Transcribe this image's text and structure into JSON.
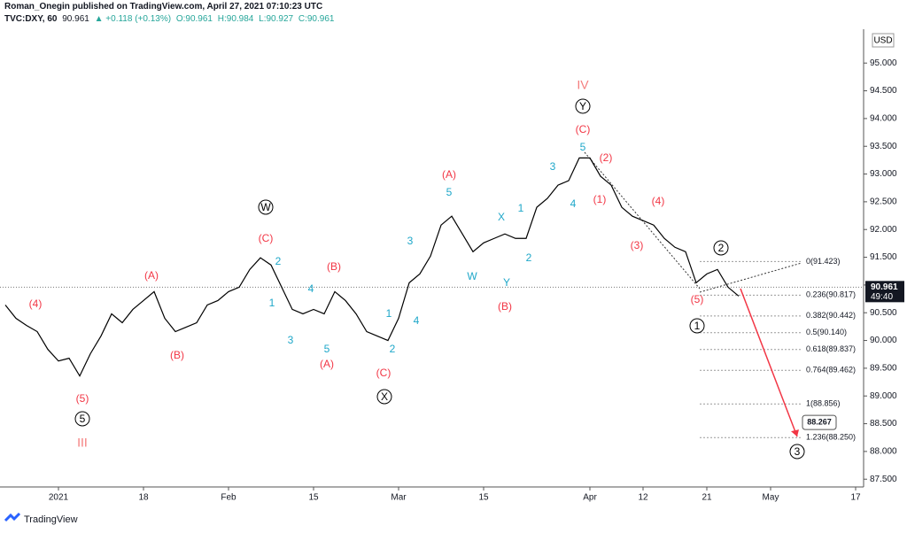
{
  "header": {
    "publisher": "Roman_Onegin published on TradingView.com, April 27, 2021 07:10:23 UTC",
    "symbol": "TVC:DXY, 60",
    "price": "90.961",
    "change": "▲ +0.118 (+0.13%)",
    "open": "O:90.961",
    "high": "H:90.984",
    "low": "L:90.927",
    "close": "C:90.961"
  },
  "chart_data": {
    "type": "line",
    "color": "#000000",
    "currency": "USD",
    "categories": [
      null,
      null,
      null,
      null,
      null,
      "2021",
      null,
      null,
      null,
      null,
      null,
      null,
      null,
      "18",
      null,
      null,
      null,
      null,
      null,
      null,
      null,
      "Feb",
      null,
      null,
      null,
      null,
      null,
      null,
      null,
      "15",
      null,
      null,
      null,
      null,
      null,
      null,
      null,
      "Mar",
      null,
      null,
      null,
      null,
      null,
      null,
      null,
      "15",
      null,
      null,
      null,
      null,
      null,
      null,
      null,
      null,
      null,
      "Apr",
      null,
      null,
      null,
      null,
      "12",
      null,
      null,
      null,
      null,
      null,
      "21",
      null,
      null,
      null,
      null,
      null,
      "May",
      null,
      null,
      null,
      null,
      null,
      null,
      null,
      "17"
    ],
    "values": [
      90.64,
      90.4,
      90.27,
      90.16,
      89.84,
      89.63,
      89.68,
      89.36,
      89.76,
      90.08,
      90.48,
      90.32,
      90.56,
      90.72,
      90.88,
      90.4,
      90.16,
      90.24,
      90.32,
      90.64,
      90.72,
      90.88,
      90.96,
      91.28,
      91.49,
      91.36,
      90.96,
      90.56,
      90.48,
      90.56,
      90.48,
      90.88,
      90.72,
      90.48,
      90.16,
      90.08,
      90.0,
      90.4,
      91.04,
      91.2,
      91.52,
      92.08,
      92.24,
      91.92,
      91.6,
      91.76,
      91.84,
      91.92,
      91.84,
      91.84,
      92.4,
      92.56,
      92.8,
      92.88,
      93.29,
      93.29,
      92.96,
      92.8,
      92.4,
      92.24,
      92.16,
      92.08,
      91.84,
      91.68,
      91.6,
      91.04,
      91.2,
      91.28,
      90.96,
      90.8,
      null,
      null,
      null,
      null,
      null,
      null,
      null,
      null,
      null,
      null,
      null
    ],
    "ylim": [
      87.36,
      95.61
    ],
    "yticks": [
      {
        "value": 87.5,
        "label": "87.500"
      },
      {
        "value": 88,
        "label": "88.000"
      },
      {
        "value": 88.5,
        "label": "88.500"
      },
      {
        "value": 89,
        "label": "89.000"
      },
      {
        "value": 89.5,
        "label": "89.500"
      },
      {
        "value": 90,
        "label": "90.000"
      },
      {
        "value": 90.5,
        "label": "90.500"
      },
      {
        "value": 91,
        "label": "91.000"
      },
      {
        "value": 91.5,
        "label": "91.500"
      },
      {
        "value": 92,
        "label": "92.000"
      },
      {
        "value": 92.5,
        "label": "92.500"
      },
      {
        "value": 93,
        "label": "93.000"
      },
      {
        "value": 93.5,
        "label": "93.500"
      },
      {
        "value": 94,
        "label": "94.000"
      },
      {
        "value": 94.5,
        "label": "94.500"
      },
      {
        "value": 95,
        "label": "95.000"
      }
    ],
    "current_price": {
      "value": 90.961,
      "label": "90.961",
      "countdown": "49:40"
    },
    "target": {
      "value": 88.267,
      "label": "88.267"
    },
    "fib_levels": [
      {
        "value": 91.423,
        "label": "0(91.423)"
      },
      {
        "value": 90.817,
        "label": "0.236(90.817)"
      },
      {
        "value": 90.442,
        "label": "0.382(90.442)"
      },
      {
        "value": 90.14,
        "label": "0.5(90.140)"
      },
      {
        "value": 89.837,
        "label": "0.618(89.837)"
      },
      {
        "value": 89.462,
        "label": "0.764(89.462)"
      },
      {
        "value": 88.856,
        "label": "1(88.856)"
      },
      {
        "value": 88.25,
        "label": "1.236(88.250)"
      }
    ],
    "wave_colors": {
      "red": "#f23645",
      "cyan": "#1ea7c9",
      "pink": "#f47c7c",
      "circled": "#000000"
    },
    "annotations": [
      {
        "text": "(4)",
        "color": "red"
      },
      {
        "text": "(5)",
        "color": "red"
      },
      {
        "text": "5",
        "color": "circled"
      },
      {
        "text": "III",
        "color": "pink"
      },
      {
        "text": "(A)",
        "color": "red"
      },
      {
        "text": "(B)",
        "color": "red"
      },
      {
        "text": "(C)",
        "color": "red"
      },
      {
        "text": "W",
        "color": "circled"
      },
      {
        "text": "2",
        "color": "cyan"
      },
      {
        "text": "1",
        "color": "cyan"
      },
      {
        "text": "3",
        "color": "cyan"
      },
      {
        "text": "4",
        "color": "cyan"
      },
      {
        "text": "(B)",
        "color": "red"
      },
      {
        "text": "5",
        "color": "cyan"
      },
      {
        "text": "(A)",
        "color": "red"
      },
      {
        "text": "1",
        "color": "cyan"
      },
      {
        "text": "2",
        "color": "cyan"
      },
      {
        "text": "(C)",
        "color": "red"
      },
      {
        "text": "X",
        "color": "circled"
      },
      {
        "text": "3",
        "color": "cyan"
      },
      {
        "text": "4",
        "color": "cyan"
      },
      {
        "text": "(A)",
        "color": "red"
      },
      {
        "text": "5",
        "color": "cyan"
      },
      {
        "text": "X",
        "color": "cyan"
      },
      {
        "text": "1",
        "color": "cyan"
      },
      {
        "text": "2",
        "color": "cyan"
      },
      {
        "text": "W",
        "color": "cyan"
      },
      {
        "text": "Y",
        "color": "cyan"
      },
      {
        "text": "(B)",
        "color": "red"
      },
      {
        "text": "3",
        "color": "cyan"
      },
      {
        "text": "4",
        "color": "cyan"
      },
      {
        "text": "IV",
        "color": "pink"
      },
      {
        "text": "Y",
        "color": "circled"
      },
      {
        "text": "(C)",
        "color": "red"
      },
      {
        "text": "5",
        "color": "cyan"
      },
      {
        "text": "(2)",
        "color": "red"
      },
      {
        "text": "(1)",
        "color": "red"
      },
      {
        "text": "(3)",
        "color": "red"
      },
      {
        "text": "(4)",
        "color": "red"
      },
      {
        "text": "2",
        "color": "circled"
      },
      {
        "text": "(5)",
        "color": "red"
      },
      {
        "text": "1",
        "color": "circled"
      },
      {
        "text": "3",
        "color": "circled"
      }
    ]
  },
  "footer": {
    "brand": "TradingView"
  }
}
